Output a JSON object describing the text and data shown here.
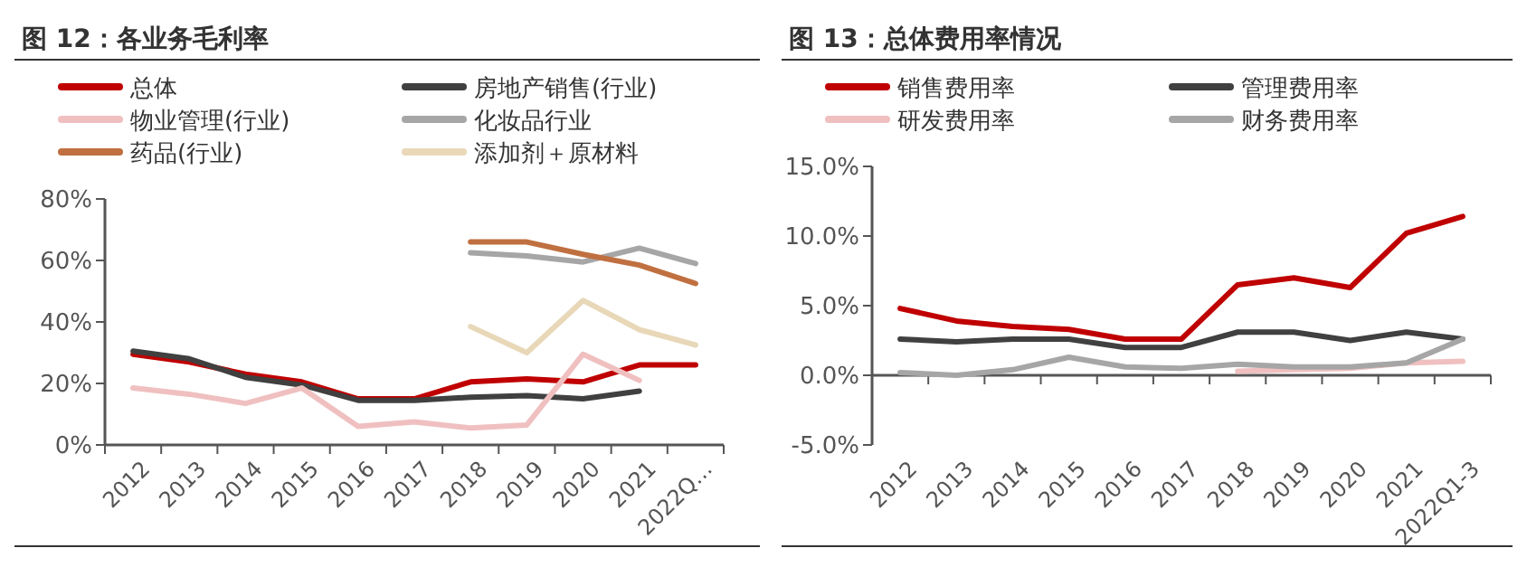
{
  "chart_data": [
    {
      "type": "line",
      "title": "图 12：各业务毛利率",
      "categories": [
        "2012",
        "2013",
        "2014",
        "2015",
        "2016",
        "2017",
        "2018",
        "2019",
        "2020",
        "2021",
        "2022Q…"
      ],
      "series": [
        {
          "name": "总体",
          "color": "#c00000",
          "values": [
            29.5,
            27,
            23,
            20.5,
            15,
            15,
            20.5,
            21.5,
            20.5,
            26,
            26
          ]
        },
        {
          "name": "房地产销售(行业)",
          "color": "#404040",
          "values": [
            30.5,
            28,
            22,
            19.5,
            14.5,
            14.5,
            15.5,
            16,
            15,
            17.5,
            null
          ]
        },
        {
          "name": "物业管理(行业)",
          "color": "#f0c0c0",
          "values": [
            18.5,
            16.5,
            13.5,
            18.5,
            6,
            7.5,
            5.5,
            6.5,
            29.5,
            21,
            null
          ]
        },
        {
          "name": "化妆品行业",
          "color": "#a6a6a6",
          "values": [
            null,
            null,
            null,
            null,
            null,
            null,
            62.5,
            61.5,
            59.5,
            64,
            59
          ]
        },
        {
          "name": "药品(行业)",
          "color": "#c07040",
          "values": [
            null,
            null,
            null,
            null,
            null,
            null,
            66,
            66,
            62,
            58.5,
            52.5
          ]
        },
        {
          "name": "添加剂＋原材料",
          "color": "#e8d8b8",
          "values": [
            null,
            null,
            null,
            null,
            null,
            null,
            38.5,
            30,
            47,
            37.5,
            32.5
          ]
        }
      ],
      "ylim": [
        0,
        80
      ],
      "yticks": [
        {
          "value": 0,
          "label": "0%"
        },
        {
          "value": 20,
          "label": "20%"
        },
        {
          "value": 40,
          "label": "40%"
        },
        {
          "value": 60,
          "label": "60%"
        },
        {
          "value": 80,
          "label": "80%"
        }
      ],
      "legend": "top",
      "grid": false,
      "marker": "none",
      "line_style": "solid"
    },
    {
      "type": "line",
      "title": "图 13：总体费用率情况",
      "categories": [
        "2012",
        "2013",
        "2014",
        "2015",
        "2016",
        "2017",
        "2018",
        "2019",
        "2020",
        "2021",
        "2022Q1-3"
      ],
      "series": [
        {
          "name": "销售费用率",
          "color": "#c00000",
          "values": [
            4.8,
            3.9,
            3.5,
            3.3,
            2.6,
            2.6,
            6.5,
            7.0,
            6.3,
            10.2,
            11.4
          ]
        },
        {
          "name": "管理费用率",
          "color": "#404040",
          "values": [
            2.6,
            2.4,
            2.6,
            2.6,
            2.0,
            2.0,
            3.1,
            3.1,
            2.5,
            3.1,
            2.6
          ]
        },
        {
          "name": "研发费用率",
          "color": "#f0c0c0",
          "values": [
            null,
            null,
            null,
            null,
            null,
            null,
            0.3,
            0.4,
            0.5,
            0.9,
            1.0
          ]
        },
        {
          "name": "财务费用率",
          "color": "#a6a6a6",
          "values": [
            0.2,
            0.0,
            0.4,
            1.3,
            0.6,
            0.5,
            0.8,
            0.6,
            0.6,
            0.9,
            2.6
          ]
        }
      ],
      "ylim": [
        -5,
        15
      ],
      "yticks": [
        {
          "value": -5,
          "label": "-5.0%"
        },
        {
          "value": 0,
          "label": "0.0%"
        },
        {
          "value": 5,
          "label": "5.0%"
        },
        {
          "value": 10,
          "label": "10.0%"
        },
        {
          "value": 15,
          "label": "15.0%"
        }
      ],
      "legend": "top",
      "marker": "none",
      "line_style": "solid"
    }
  ]
}
